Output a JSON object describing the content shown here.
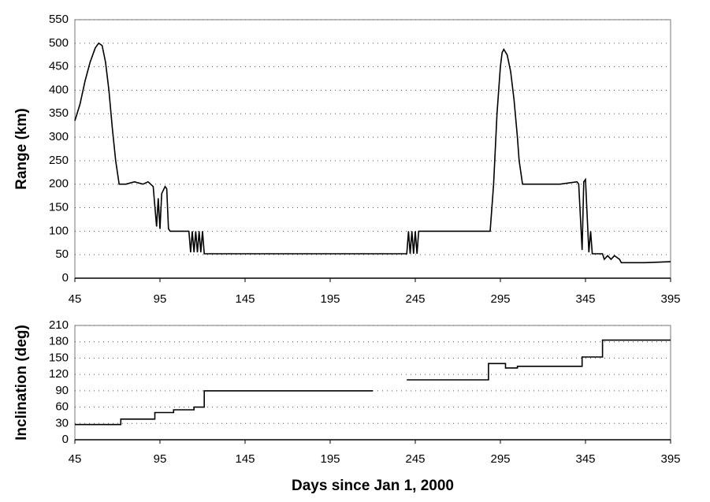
{
  "chart_data": [
    {
      "type": "line",
      "y_label": "Range (km)",
      "color": "#000000",
      "grid": true,
      "xlim": [
        45,
        395
      ],
      "xticks": [
        45,
        95,
        145,
        195,
        245,
        295,
        345,
        395
      ],
      "ylim": [
        0,
        550
      ],
      "yticks": [
        0,
        50,
        100,
        150,
        200,
        250,
        300,
        350,
        400,
        450,
        500,
        550
      ],
      "x": [
        45,
        48,
        51,
        54,
        57,
        59,
        61,
        63,
        65,
        67,
        69,
        71,
        75,
        80,
        85,
        88,
        91,
        93,
        94,
        95,
        96,
        98,
        99,
        100,
        101,
        108,
        112,
        113,
        114,
        115,
        116,
        117,
        118,
        119,
        120,
        121,
        150,
        200,
        240,
        241,
        242,
        243,
        244,
        245,
        246,
        247,
        255,
        270,
        289,
        291,
        293,
        295,
        296,
        297,
        299,
        301,
        303,
        305,
        306,
        308,
        320,
        330,
        340,
        341,
        343,
        344,
        345,
        346,
        347,
        348,
        349,
        355,
        356,
        358,
        360,
        362,
        365,
        366,
        380,
        395
      ],
      "values": [
        335,
        370,
        420,
        460,
        490,
        500,
        495,
        460,
        400,
        320,
        250,
        200,
        200,
        205,
        200,
        205,
        195,
        110,
        170,
        105,
        180,
        195,
        190,
        105,
        100,
        100,
        100,
        55,
        100,
        55,
        100,
        55,
        100,
        55,
        100,
        52,
        52,
        52,
        52,
        100,
        52,
        100,
        52,
        100,
        52,
        100,
        100,
        100,
        100,
        200,
        350,
        450,
        480,
        487,
        475,
        440,
        380,
        300,
        250,
        200,
        200,
        200,
        205,
        200,
        60,
        205,
        210,
        130,
        55,
        100,
        52,
        52,
        40,
        48,
        40,
        48,
        40,
        33,
        33,
        35
      ]
    },
    {
      "type": "line",
      "y_label": "Inclination (deg)",
      "x_label": "Days since Jan 1, 2000",
      "color": "#000000",
      "grid": true,
      "xlim": [
        45,
        395
      ],
      "xticks": [
        45,
        95,
        145,
        195,
        245,
        295,
        345,
        395
      ],
      "ylim": [
        0,
        210
      ],
      "yticks": [
        0,
        30,
        60,
        90,
        120,
        150,
        180,
        210
      ],
      "x": [
        45,
        72,
        72,
        92,
        92,
        103,
        103,
        115,
        115,
        121,
        121,
        220,
        230,
        240,
        288,
        288,
        298,
        298,
        305,
        305,
        343,
        343,
        355,
        355,
        395
      ],
      "values": [
        28,
        28,
        38,
        38,
        50,
        50,
        55,
        55,
        60,
        60,
        90,
        90,
        null,
        110,
        110,
        140,
        140,
        132,
        132,
        135,
        135,
        152,
        152,
        183,
        183
      ]
    }
  ]
}
